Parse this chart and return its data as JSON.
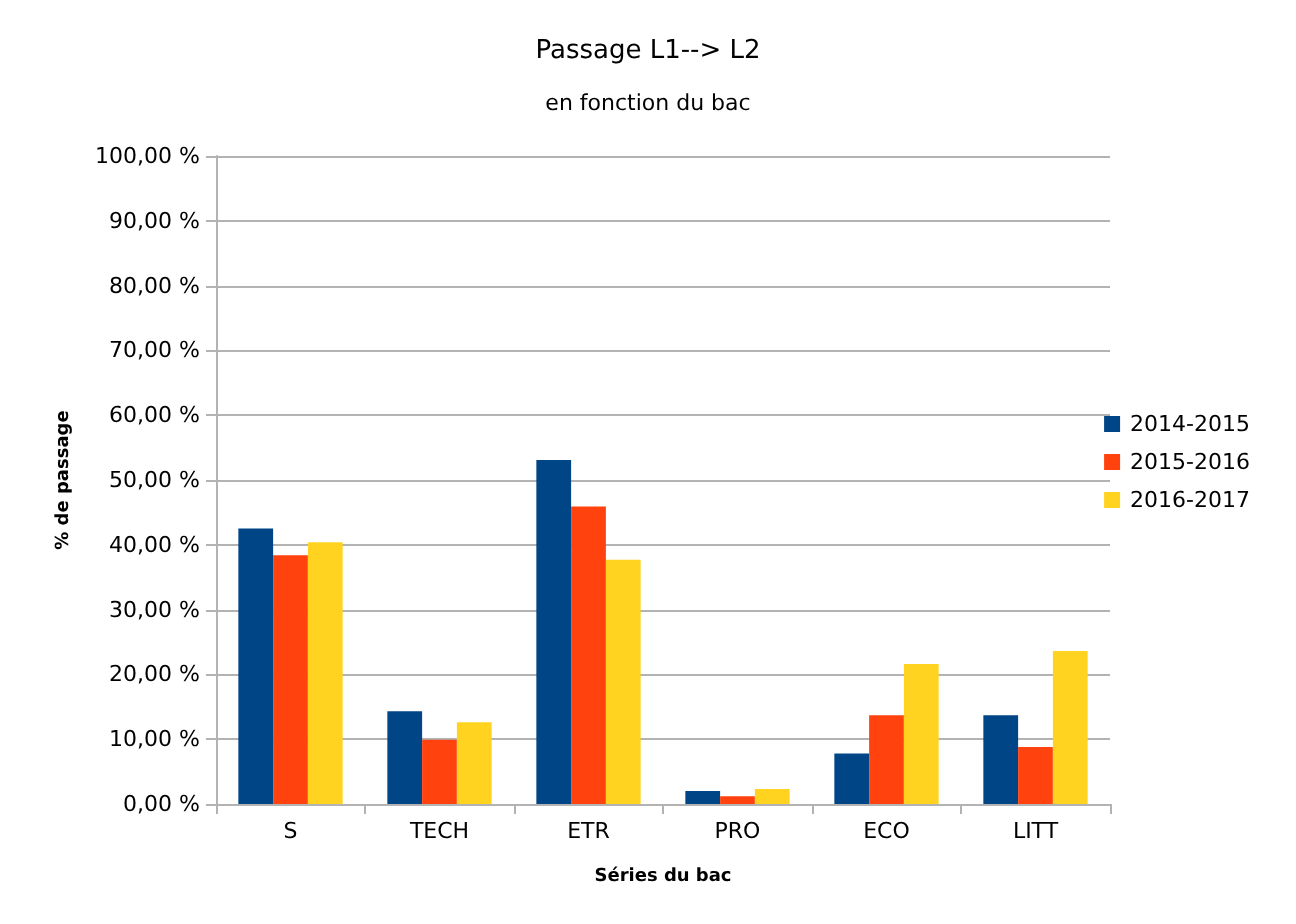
{
  "chart_data": {
    "type": "bar",
    "title": "Passage L1--> L2",
    "subtitle": "en fonction du bac",
    "xlabel": "Séries du bac",
    "ylabel": "% de passage",
    "categories": [
      "S",
      "TECH",
      "ETR",
      "PRO",
      "ECO",
      "LITT"
    ],
    "series": [
      {
        "name": "2014-2015",
        "color": "#004586",
        "values": [
          42.5,
          14.3,
          53.1,
          2.0,
          7.8,
          13.7
        ]
      },
      {
        "name": "2015-2016",
        "color": "#ff420e",
        "values": [
          38.4,
          9.9,
          45.9,
          1.2,
          13.7,
          8.8
        ]
      },
      {
        "name": "2016-2017",
        "color": "#ffd320",
        "values": [
          40.4,
          12.6,
          37.7,
          2.3,
          21.6,
          23.6
        ]
      }
    ],
    "ylim": [
      0,
      100
    ],
    "yticks": [
      {
        "value": 0,
        "label": "0,00 %"
      },
      {
        "value": 10,
        "label": "10,00 %"
      },
      {
        "value": 20,
        "label": "20,00 %"
      },
      {
        "value": 30,
        "label": "30,00 %"
      },
      {
        "value": 40,
        "label": "40,00 %"
      },
      {
        "value": 50,
        "label": "50,00 %"
      },
      {
        "value": 60,
        "label": "60,00 %"
      },
      {
        "value": 70,
        "label": "70,00 %"
      },
      {
        "value": 80,
        "label": "80,00 %"
      },
      {
        "value": 90,
        "label": "90,00 %"
      },
      {
        "value": 100,
        "label": "100,00 %"
      }
    ],
    "grid": "y",
    "legend": "right"
  }
}
